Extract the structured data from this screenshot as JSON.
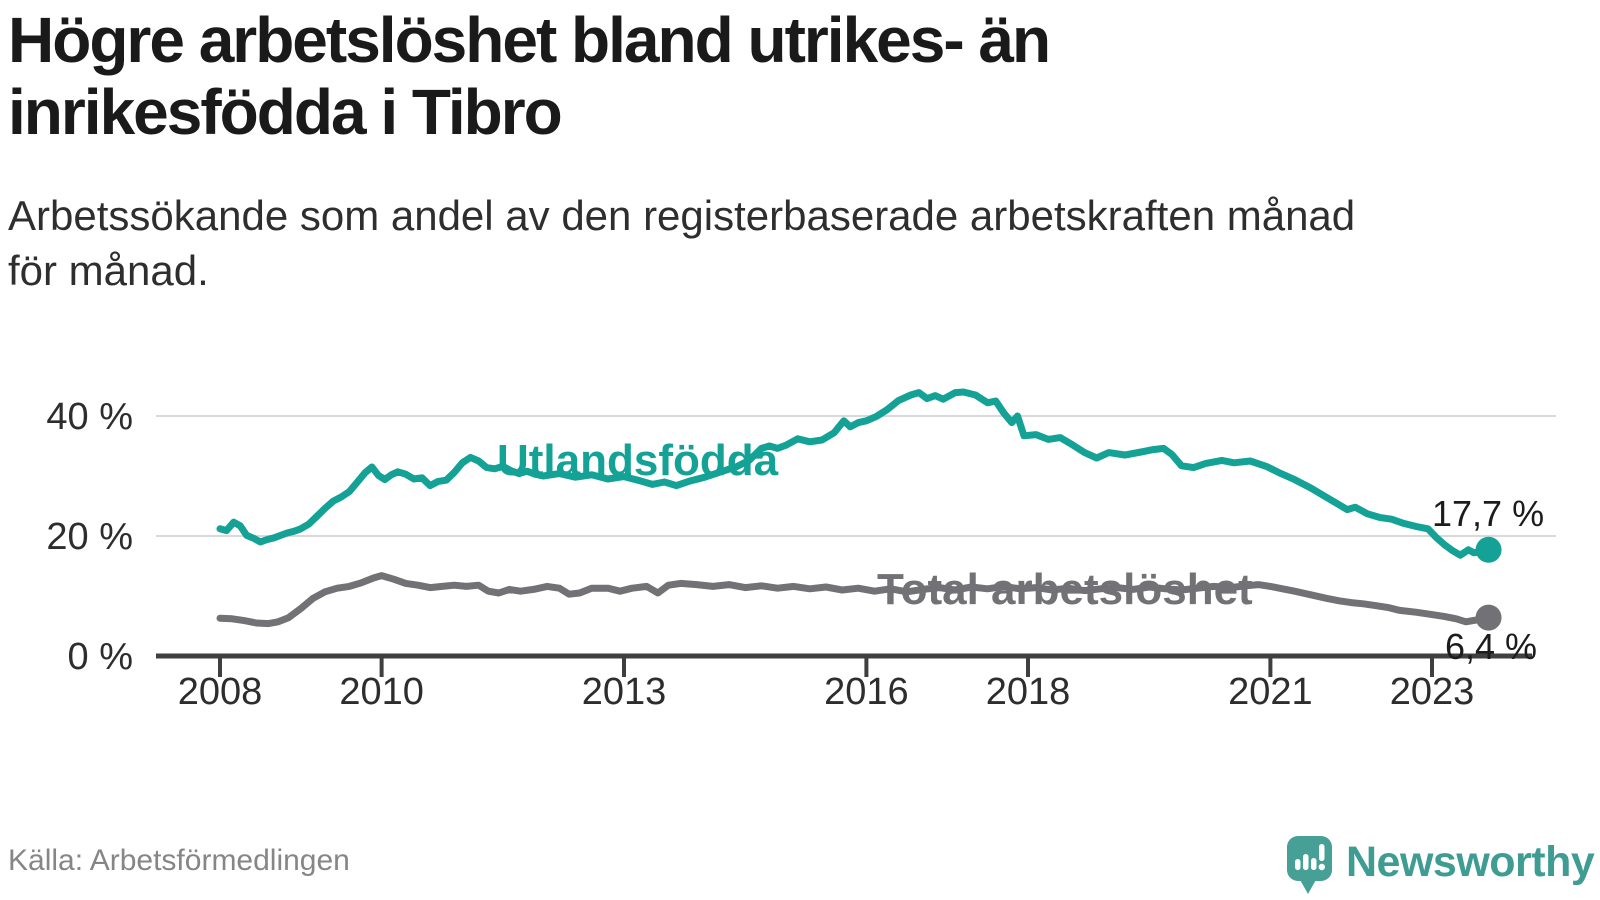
{
  "header": {
    "title_line1": "Högre arbetslöshet bland utrikes- än",
    "title_line2": "inrikesfödda i Tibro",
    "subtitle_line1": "Arbetssökande som andel av den registerbaserade arbetskraften månad",
    "subtitle_line2": "för månad."
  },
  "chart_data": {
    "type": "line",
    "unit": "%",
    "x_label_years": [
      2008,
      2010,
      2013,
      2016,
      2018,
      2021,
      2023
    ],
    "y_ticks": [
      {
        "value": 0,
        "label": "0 %"
      },
      {
        "value": 20,
        "label": "20 %"
      },
      {
        "value": 40,
        "label": "40 %"
      }
    ],
    "xlim": [
      2008,
      2023.9
    ],
    "ylim": [
      0,
      47
    ],
    "grid": "horizontal",
    "legend_position": "inline-labels",
    "series": [
      {
        "name": "Utlandsfödda",
        "color": "#13a295",
        "end_value": 17.7,
        "end_label": "17,7 %",
        "points": [
          [
            2008.0,
            21.2
          ],
          [
            2008.08,
            20.9
          ],
          [
            2008.17,
            22.3
          ],
          [
            2008.25,
            21.7
          ],
          [
            2008.33,
            20.1
          ],
          [
            2008.42,
            19.6
          ],
          [
            2008.5,
            19.0
          ],
          [
            2008.58,
            19.4
          ],
          [
            2008.67,
            19.7
          ],
          [
            2008.75,
            20.1
          ],
          [
            2008.83,
            20.5
          ],
          [
            2008.92,
            20.8
          ],
          [
            2009.0,
            21.2
          ],
          [
            2009.1,
            22.0
          ],
          [
            2009.2,
            23.3
          ],
          [
            2009.3,
            24.6
          ],
          [
            2009.4,
            25.8
          ],
          [
            2009.5,
            26.5
          ],
          [
            2009.6,
            27.4
          ],
          [
            2009.7,
            29.0
          ],
          [
            2009.8,
            30.6
          ],
          [
            2009.88,
            31.5
          ],
          [
            2009.96,
            30.1
          ],
          [
            2010.04,
            29.4
          ],
          [
            2010.12,
            30.2
          ],
          [
            2010.2,
            30.7
          ],
          [
            2010.3,
            30.3
          ],
          [
            2010.4,
            29.5
          ],
          [
            2010.5,
            29.7
          ],
          [
            2010.6,
            28.4
          ],
          [
            2010.7,
            29.1
          ],
          [
            2010.8,
            29.3
          ],
          [
            2010.9,
            30.6
          ],
          [
            2011.0,
            32.2
          ],
          [
            2011.1,
            33.1
          ],
          [
            2011.2,
            32.5
          ],
          [
            2011.3,
            31.4
          ],
          [
            2011.4,
            31.2
          ],
          [
            2011.5,
            31.6
          ],
          [
            2011.6,
            30.9
          ],
          [
            2011.7,
            30.4
          ],
          [
            2011.8,
            30.8
          ],
          [
            2011.9,
            30.3
          ],
          [
            2012.0,
            30.0
          ],
          [
            2012.2,
            30.4
          ],
          [
            2012.4,
            29.8
          ],
          [
            2012.6,
            30.2
          ],
          [
            2012.8,
            29.5
          ],
          [
            2013.0,
            29.9
          ],
          [
            2013.2,
            29.2
          ],
          [
            2013.35,
            28.6
          ],
          [
            2013.5,
            29.0
          ],
          [
            2013.65,
            28.4
          ],
          [
            2013.8,
            29.1
          ],
          [
            2014.0,
            29.8
          ],
          [
            2014.2,
            30.7
          ],
          [
            2014.4,
            31.6
          ],
          [
            2014.55,
            32.6
          ],
          [
            2014.7,
            34.6
          ],
          [
            2014.8,
            35.0
          ],
          [
            2014.9,
            34.6
          ],
          [
            2015.0,
            35.1
          ],
          [
            2015.15,
            36.2
          ],
          [
            2015.3,
            35.7
          ],
          [
            2015.45,
            36.0
          ],
          [
            2015.6,
            37.2
          ],
          [
            2015.72,
            39.2
          ],
          [
            2015.8,
            38.2
          ],
          [
            2015.9,
            38.9
          ],
          [
            2016.0,
            39.2
          ],
          [
            2016.12,
            39.9
          ],
          [
            2016.25,
            41.0
          ],
          [
            2016.4,
            42.6
          ],
          [
            2016.55,
            43.5
          ],
          [
            2016.65,
            43.9
          ],
          [
            2016.75,
            42.9
          ],
          [
            2016.85,
            43.4
          ],
          [
            2016.95,
            42.8
          ],
          [
            2017.1,
            43.9
          ],
          [
            2017.2,
            44.0
          ],
          [
            2017.35,
            43.5
          ],
          [
            2017.5,
            42.2
          ],
          [
            2017.6,
            42.5
          ],
          [
            2017.7,
            40.5
          ],
          [
            2017.8,
            38.9
          ],
          [
            2017.87,
            40.0
          ],
          [
            2017.95,
            36.7
          ],
          [
            2018.1,
            36.9
          ],
          [
            2018.25,
            36.1
          ],
          [
            2018.4,
            36.4
          ],
          [
            2018.55,
            35.2
          ],
          [
            2018.7,
            33.9
          ],
          [
            2018.85,
            33.0
          ],
          [
            2019.0,
            33.9
          ],
          [
            2019.2,
            33.5
          ],
          [
            2019.4,
            34.0
          ],
          [
            2019.55,
            34.4
          ],
          [
            2019.68,
            34.6
          ],
          [
            2019.78,
            33.6
          ],
          [
            2019.9,
            31.7
          ],
          [
            2020.05,
            31.4
          ],
          [
            2020.2,
            32.1
          ],
          [
            2020.4,
            32.6
          ],
          [
            2020.55,
            32.2
          ],
          [
            2020.75,
            32.5
          ],
          [
            2020.95,
            31.6
          ],
          [
            2021.1,
            30.6
          ],
          [
            2021.3,
            29.4
          ],
          [
            2021.5,
            28.0
          ],
          [
            2021.7,
            26.4
          ],
          [
            2021.85,
            25.2
          ],
          [
            2021.95,
            24.4
          ],
          [
            2022.05,
            24.8
          ],
          [
            2022.2,
            23.7
          ],
          [
            2022.35,
            23.1
          ],
          [
            2022.5,
            22.8
          ],
          [
            2022.65,
            22.1
          ],
          [
            2022.8,
            21.6
          ],
          [
            2022.95,
            21.2
          ],
          [
            2023.05,
            19.8
          ],
          [
            2023.15,
            18.6
          ],
          [
            2023.25,
            17.6
          ],
          [
            2023.35,
            16.8
          ],
          [
            2023.45,
            17.7
          ],
          [
            2023.52,
            17.2
          ],
          [
            2023.6,
            17.4
          ],
          [
            2023.7,
            17.7
          ]
        ]
      },
      {
        "name": "Total arbetslöshet",
        "color": "#717176",
        "end_value": 6.4,
        "end_label": "6,4 %",
        "points": [
          [
            2008.0,
            6.3
          ],
          [
            2008.15,
            6.2
          ],
          [
            2008.3,
            5.9
          ],
          [
            2008.45,
            5.5
          ],
          [
            2008.6,
            5.4
          ],
          [
            2008.72,
            5.7
          ],
          [
            2008.85,
            6.4
          ],
          [
            2009.0,
            7.9
          ],
          [
            2009.15,
            9.6
          ],
          [
            2009.3,
            10.7
          ],
          [
            2009.45,
            11.3
          ],
          [
            2009.6,
            11.6
          ],
          [
            2009.75,
            12.2
          ],
          [
            2009.9,
            13.0
          ],
          [
            2010.0,
            13.4
          ],
          [
            2010.15,
            12.8
          ],
          [
            2010.3,
            12.1
          ],
          [
            2010.45,
            11.8
          ],
          [
            2010.6,
            11.4
          ],
          [
            2010.75,
            11.6
          ],
          [
            2010.9,
            11.8
          ],
          [
            2011.05,
            11.6
          ],
          [
            2011.2,
            11.8
          ],
          [
            2011.32,
            10.8
          ],
          [
            2011.45,
            10.5
          ],
          [
            2011.58,
            11.1
          ],
          [
            2011.72,
            10.8
          ],
          [
            2011.88,
            11.1
          ],
          [
            2012.05,
            11.6
          ],
          [
            2012.2,
            11.3
          ],
          [
            2012.32,
            10.3
          ],
          [
            2012.45,
            10.5
          ],
          [
            2012.6,
            11.3
          ],
          [
            2012.8,
            11.3
          ],
          [
            2012.95,
            10.8
          ],
          [
            2013.1,
            11.3
          ],
          [
            2013.28,
            11.6
          ],
          [
            2013.42,
            10.5
          ],
          [
            2013.55,
            11.8
          ],
          [
            2013.7,
            12.1
          ],
          [
            2013.9,
            11.9
          ],
          [
            2014.1,
            11.6
          ],
          [
            2014.3,
            11.9
          ],
          [
            2014.5,
            11.4
          ],
          [
            2014.7,
            11.7
          ],
          [
            2014.9,
            11.3
          ],
          [
            2015.1,
            11.6
          ],
          [
            2015.3,
            11.2
          ],
          [
            2015.5,
            11.5
          ],
          [
            2015.7,
            11.0
          ],
          [
            2015.9,
            11.3
          ],
          [
            2016.1,
            10.8
          ],
          [
            2016.3,
            11.2
          ],
          [
            2016.5,
            10.7
          ],
          [
            2016.7,
            11.1
          ],
          [
            2016.9,
            11.4
          ],
          [
            2017.1,
            11.0
          ],
          [
            2017.3,
            11.5
          ],
          [
            2017.5,
            11.2
          ],
          [
            2017.7,
            11.6
          ],
          [
            2017.9,
            11.2
          ],
          [
            2018.1,
            11.4
          ],
          [
            2018.3,
            11.0
          ],
          [
            2018.5,
            11.3
          ],
          [
            2018.7,
            10.9
          ],
          [
            2018.9,
            11.2
          ],
          [
            2019.1,
            11.4
          ],
          [
            2019.3,
            11.1
          ],
          [
            2019.5,
            11.5
          ],
          [
            2019.7,
            11.2
          ],
          [
            2019.9,
            11.0
          ],
          [
            2020.1,
            11.3
          ],
          [
            2020.3,
            11.6
          ],
          [
            2020.5,
            11.4
          ],
          [
            2020.7,
            11.7
          ],
          [
            2020.85,
            11.9
          ],
          [
            2021.0,
            11.6
          ],
          [
            2021.15,
            11.2
          ],
          [
            2021.3,
            10.8
          ],
          [
            2021.5,
            10.2
          ],
          [
            2021.7,
            9.6
          ],
          [
            2021.85,
            9.2
          ],
          [
            2022.0,
            8.9
          ],
          [
            2022.15,
            8.7
          ],
          [
            2022.3,
            8.4
          ],
          [
            2022.45,
            8.1
          ],
          [
            2022.6,
            7.6
          ],
          [
            2022.8,
            7.3
          ],
          [
            2023.0,
            6.9
          ],
          [
            2023.15,
            6.6
          ],
          [
            2023.3,
            6.2
          ],
          [
            2023.42,
            5.7
          ],
          [
            2023.55,
            6.0
          ],
          [
            2023.7,
            6.4
          ]
        ]
      }
    ]
  },
  "footer": {
    "source": "Källa: Arbetsförmedlingen",
    "brand": "Newsworthy",
    "brand_color": "#3f9c92",
    "brand_icon_color": "#47a096"
  }
}
